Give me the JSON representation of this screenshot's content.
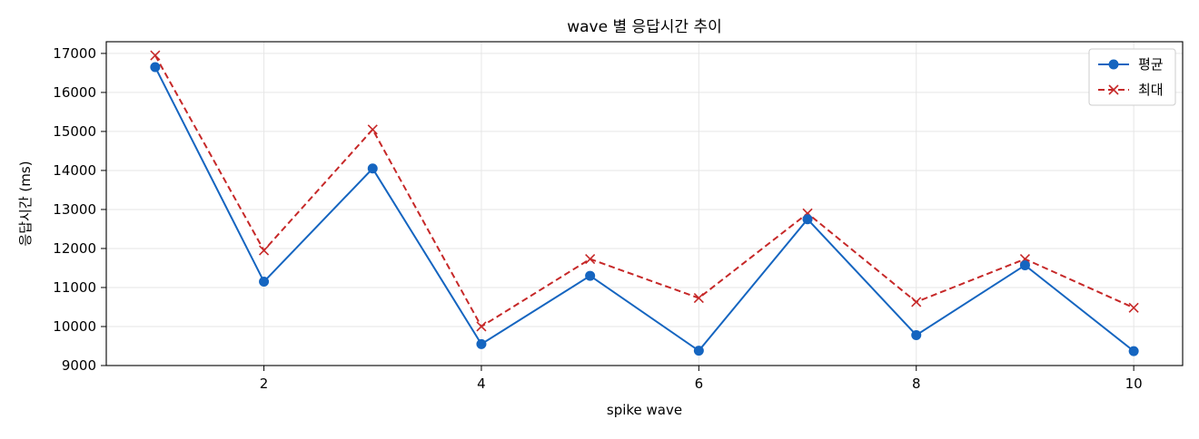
{
  "chart_data": {
    "type": "line",
    "title": "wave 별 응답시간 추이",
    "xlabel": "spike wave",
    "ylabel": "응답시간 (ms)",
    "x": [
      1,
      2,
      3,
      4,
      5,
      6,
      7,
      8,
      9,
      10
    ],
    "xlim": [
      0.55,
      10.45
    ],
    "ylim": [
      9000,
      17300
    ],
    "x_ticks": [
      2,
      4,
      6,
      8,
      10
    ],
    "y_ticks": [
      9000,
      10000,
      11000,
      12000,
      13000,
      14000,
      15000,
      16000,
      17000
    ],
    "grid": true,
    "legend_position": "top-right",
    "series": [
      {
        "name": "평균",
        "values": [
          16650,
          11150,
          14050,
          9550,
          11300,
          9380,
          12750,
          9780,
          11570,
          9370
        ],
        "color": "#1565c0",
        "line_style": "solid",
        "marker": "circle"
      },
      {
        "name": "최대",
        "values": [
          16950,
          11950,
          15050,
          10000,
          11730,
          10730,
          12900,
          10630,
          11730,
          10480
        ],
        "color": "#c62828",
        "line_style": "dashed",
        "marker": "x"
      }
    ]
  }
}
